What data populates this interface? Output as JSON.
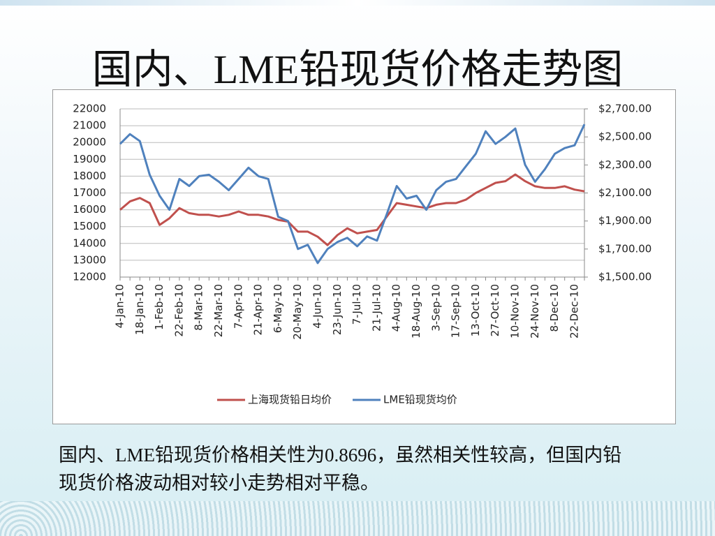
{
  "title": "国内、LME铅现货价格走势图",
  "note": "国内、LME铅现货价格相关性为0.8696，虽然相关性较高，但国内铅现货价格波动相对较小走势相对平稳。",
  "chart_data": {
    "type": "line",
    "categories": [
      "4-Jan-10",
      null,
      "18-Jan-10",
      null,
      "1-Feb-10",
      null,
      "22-Feb-10",
      null,
      "8-Mar-10",
      null,
      "22-Mar-10",
      null,
      "7-Apr-10",
      null,
      "21-Apr-10",
      null,
      "6-May-10",
      null,
      "20-May-10",
      null,
      "4-Jun-10",
      null,
      "23-Jun-10",
      null,
      "7-Jul-10",
      null,
      "21-Jul-10",
      null,
      "4-Aug-10",
      null,
      "18-Aug-10",
      null,
      "3-Sep-10",
      null,
      "17-Sep-10",
      null,
      "13-Oct-10",
      null,
      "27-Oct-10",
      null,
      "10-Nov-10",
      null,
      "24-Nov-10",
      null,
      "8-Dec-10",
      null,
      "22-Dec-10",
      null
    ],
    "series": [
      {
        "name": "上海现货铅日均价",
        "color": "#c0504d",
        "values": [
          16000,
          16500,
          16700,
          16400,
          15100,
          15500,
          16100,
          15800,
          15700,
          15700,
          15600,
          15700,
          15900,
          15700,
          15700,
          15600,
          15400,
          15300,
          14700,
          14700,
          14400,
          13900,
          14500,
          14900,
          14600,
          14700,
          14800,
          15600,
          16400,
          16300,
          16200,
          16100,
          16300,
          16400,
          16400,
          16600,
          17000,
          17300,
          17600,
          17700,
          18100,
          17700,
          17400,
          17300,
          17300,
          17400,
          17200,
          17100
        ]
      },
      {
        "name": "LME铅现货均价",
        "color": "#4f81bd",
        "axis": "y2",
        "values": [
          2450,
          2520,
          2470,
          2230,
          2080,
          1980,
          2200,
          2150,
          2220,
          2230,
          2180,
          2120,
          2200,
          2280,
          2220,
          2200,
          1930,
          1900,
          1700,
          1730,
          1600,
          1700,
          1750,
          1780,
          1720,
          1790,
          1760,
          1950,
          2150,
          2060,
          2080,
          1980,
          2120,
          2180,
          2200,
          2290,
          2380,
          2540,
          2450,
          2500,
          2560,
          2300,
          2180,
          2270,
          2380,
          2420,
          2440,
          2590
        ]
      }
    ],
    "ylim": [
      12000,
      22000
    ],
    "yticks": [
      12000,
      13000,
      14000,
      15000,
      16000,
      17000,
      18000,
      19000,
      20000,
      21000,
      22000
    ],
    "y2lim": [
      1500,
      2700
    ],
    "y2ticks": [
      {
        "value": 1500,
        "label": "$1,500.00"
      },
      {
        "value": 1700,
        "label": "$1,700.00"
      },
      {
        "value": 1900,
        "label": "$1,900.00"
      },
      {
        "value": 2100,
        "label": "$2,100.00"
      },
      {
        "value": 2300,
        "label": "$2,300.00"
      },
      {
        "value": 2500,
        "label": "$2,500.00"
      },
      {
        "value": 2700,
        "label": "$2,700.00"
      }
    ],
    "grid": true,
    "legend": "bottom"
  }
}
